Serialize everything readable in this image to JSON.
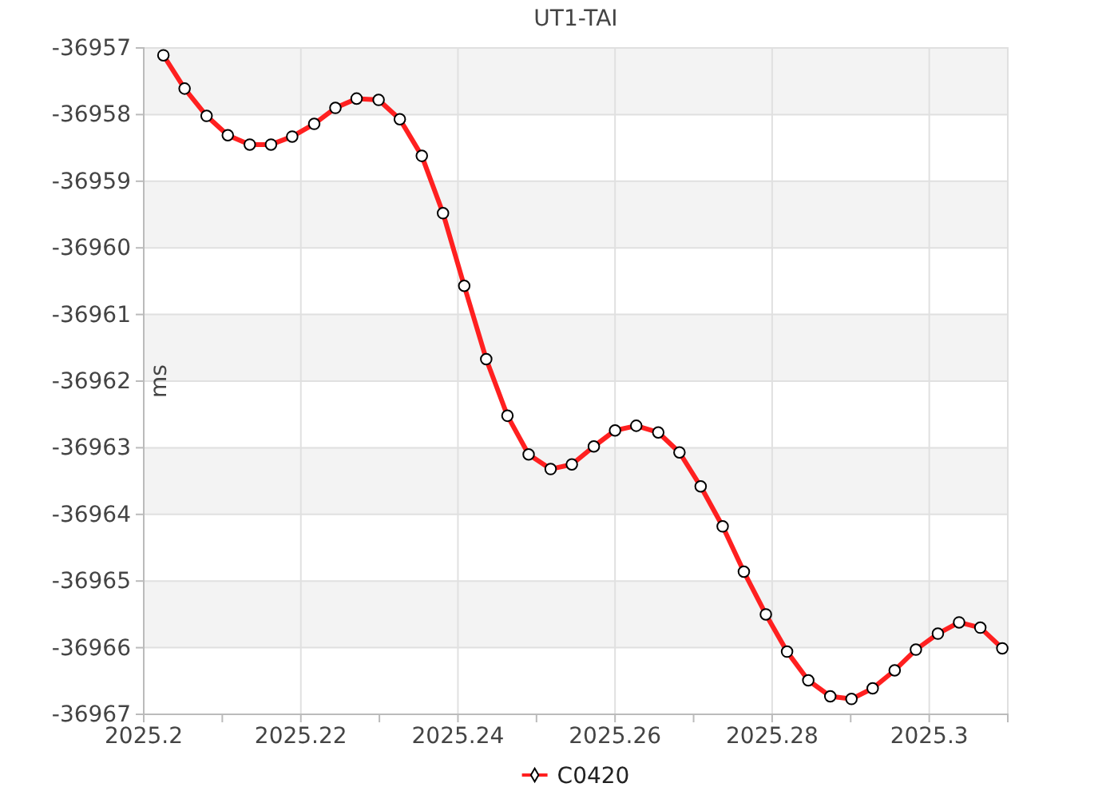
{
  "chart_data": {
    "type": "line",
    "title": "UT1-TAI",
    "ylabel": "ms",
    "x": [
      2025.2025,
      2025.2052,
      2025.208,
      2025.2107,
      2025.2135,
      2025.2162,
      2025.2189,
      2025.2217,
      2025.2244,
      2025.2271,
      2025.2299,
      2025.2326,
      2025.2354,
      2025.2381,
      2025.2408,
      2025.2436,
      2025.2463,
      2025.249,
      2025.2518,
      2025.2545,
      2025.2573,
      2025.26,
      2025.2627,
      2025.2655,
      2025.2682,
      2025.2709,
      2025.2737,
      2025.2764,
      2025.2792,
      2025.2819,
      2025.2846,
      2025.2874,
      2025.2901,
      2025.2928,
      2025.2956,
      2025.2983,
      2025.3011,
      2025.3038,
      2025.3065,
      2025.3093
    ],
    "series": [
      {
        "name": "C0420",
        "color": "#ff2020",
        "values": [
          -36957.11,
          -36957.61,
          -36958.02,
          -36958.31,
          -36958.45,
          -36958.45,
          -36958.33,
          -36958.14,
          -36957.9,
          -36957.76,
          -36957.78,
          -36958.07,
          -36958.62,
          -36959.48,
          -36960.57,
          -36961.67,
          -36962.52,
          -36963.1,
          -36963.32,
          -36963.25,
          -36962.98,
          -36962.74,
          -36962.67,
          -36962.77,
          -36963.07,
          -36963.58,
          -36964.18,
          -36964.86,
          -36965.5,
          -36966.06,
          -36966.49,
          -36966.73,
          -36966.77,
          -36966.61,
          -36966.34,
          -36966.03,
          -36965.79,
          -36965.62,
          -36965.7,
          -36966.01
        ]
      }
    ],
    "xlim": [
      2025.2,
      2025.31
    ],
    "xticks": [
      2025.2,
      {
        "value": 2025.21,
        "label": null
      },
      2025.22,
      {
        "value": 2025.23,
        "label": null
      },
      2025.24,
      {
        "value": 2025.25,
        "label": null
      },
      2025.26,
      {
        "value": 2025.27,
        "label": null
      },
      2025.28,
      {
        "value": 2025.29,
        "label": null
      },
      2025.3,
      {
        "value": 2025.31,
        "label": null
      }
    ],
    "ylim": [
      -36967,
      -36957
    ],
    "yticks": [
      -36967,
      -36966,
      -36965,
      -36964,
      -36963,
      -36962,
      -36961,
      -36960,
      -36959,
      -36958,
      -36957
    ],
    "grid": true,
    "legend": "bottom",
    "marker": "circle",
    "line_style": "solid"
  }
}
